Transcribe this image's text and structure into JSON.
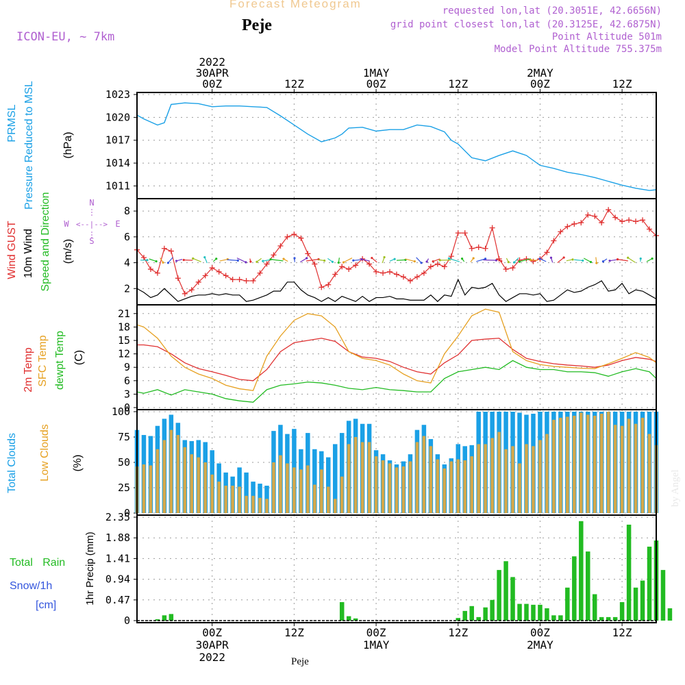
{
  "header": {
    "top_title": "Forecast Meteogram",
    "location": "Peje",
    "model": "ICON-EU, ~ 7km",
    "requested_point": "requested lon,lat (20.3051E, 42.6656N)",
    "grid_point": "grid point closest lon,lat (20.3125E, 42.6875N)",
    "point_altitude": "Point Altitude 501m",
    "model_altitude": "Model Point Altitude 755.375m",
    "footer_location": "Peje",
    "watermark": "by Angel"
  },
  "time_axis": {
    "top_labels": [
      {
        "lines": [
          "2022",
          "30APR",
          "00Z"
        ]
      },
      {
        "lines": [
          "12Z"
        ]
      },
      {
        "lines": [
          "1MAY",
          "00Z"
        ]
      },
      {
        "lines": [
          "12Z"
        ]
      },
      {
        "lines": [
          "2MAY",
          "00Z"
        ]
      },
      {
        "lines": [
          "12Z"
        ]
      }
    ],
    "bottom_labels": [
      {
        "lines": [
          "00Z",
          "30APR",
          "2022"
        ]
      },
      {
        "lines": [
          "12Z"
        ]
      },
      {
        "lines": [
          "00Z",
          "1MAY"
        ]
      },
      {
        "lines": [
          "12Z"
        ]
      },
      {
        "lines": [
          "00Z",
          "2MAY"
        ]
      },
      {
        "lines": [
          "12Z"
        ]
      }
    ],
    "hours_tick_positions": [
      0,
      12,
      24,
      36,
      48,
      60
    ],
    "x_start_hour": -11,
    "x_end_hour": 65
  },
  "panel_labels": {
    "pressure": [
      {
        "text": "PRMSL",
        "color": "#1aa0e6"
      },
      {
        "text": "Pressure Reduced to MSL",
        "color": "#1aa0e6"
      },
      {
        "text": "(hPa)",
        "color": "#000000"
      }
    ],
    "wind": [
      {
        "text": "Wind GUST",
        "color": "#e03030"
      },
      {
        "text": "10m Wind",
        "color": "#000000"
      },
      {
        "text": "Speed and Direction",
        "color": "#22bb22"
      },
      {
        "text": "(m/s)",
        "color": "#000000"
      }
    ],
    "wind_compass": {
      "n": "N",
      "s": "S",
      "w": "W",
      "e": "E",
      "center": "<--|-->"
    },
    "temp": [
      {
        "text": "2m Temp",
        "color": "#e03030"
      },
      {
        "text": "SFC Temp",
        "color": "#e6a020"
      },
      {
        "text": "dewpt Temp",
        "color": "#22bb22"
      },
      {
        "text": "(C)",
        "color": "#000000"
      }
    ],
    "clouds": [
      {
        "text": "Total Clouds",
        "color": "#1aa0e6"
      },
      {
        "text": "Low Clouds",
        "color": "#e6a020"
      },
      {
        "text": "(%)",
        "color": "#000000"
      }
    ],
    "precip_left": [
      {
        "text": "Total Rain",
        "color": "#22bb22"
      },
      {
        "text": "Snow/1h",
        "color": "#3355dd"
      },
      {
        "text": "[cm]",
        "color": "#3355dd"
      }
    ],
    "precip_axis": "1hr Precip (mm)"
  },
  "colors": {
    "pressure": "#1aa0e6",
    "gust": "#e03030",
    "wind": "#000000",
    "t2m": "#e03030",
    "tsfc": "#e6a020",
    "dewpt": "#22bb22",
    "total_clouds": "#1aa0e6",
    "low_clouds": "#d4a84a",
    "rain": "#22bb22",
    "title_fade": "#f0c890",
    "meta": "#b060d0"
  },
  "chart_data": [
    {
      "type": "line",
      "panel": "pressure",
      "ylabel": "(hPa)",
      "ylim": [
        1009.6,
        1023
      ],
      "yticks": [
        1011,
        1014,
        1017,
        1020,
        1023
      ],
      "x_hours": [
        -11,
        -10,
        -8,
        -7,
        -6,
        -4,
        -2,
        0,
        2,
        4,
        6,
        8,
        10,
        12,
        14,
        16,
        18,
        19,
        20,
        22,
        24,
        26,
        28,
        30,
        32,
        34,
        35,
        36,
        38,
        40,
        42,
        44,
        46,
        48,
        50,
        52,
        54,
        56,
        58,
        60,
        62,
        64,
        65
      ],
      "series": [
        {
          "name": "PRMSL",
          "values": [
            1020.3,
            1019.8,
            1019.0,
            1019.3,
            1021.7,
            1021.9,
            1021.8,
            1021.4,
            1021.5,
            1021.5,
            1021.4,
            1021.3,
            1020.2,
            1019.0,
            1017.8,
            1016.8,
            1017.3,
            1017.8,
            1018.6,
            1018.7,
            1018.2,
            1018.4,
            1018.4,
            1019.0,
            1018.8,
            1018.1,
            1017.0,
            1016.5,
            1014.7,
            1014.3,
            1015.0,
            1015.6,
            1015.0,
            1013.7,
            1013.3,
            1012.8,
            1012.5,
            1012.1,
            1011.6,
            1011.1,
            1010.7,
            1010.4,
            1010.5
          ]
        }
      ]
    },
    {
      "type": "line",
      "panel": "wind",
      "ylabel": "(m/s)",
      "ylim": [
        0.9,
        8.8
      ],
      "yticks": [
        2,
        4,
        6,
        8
      ],
      "x_hours": [
        -11,
        -10,
        -9,
        -8,
        -7,
        -6,
        -5,
        -4,
        -3,
        -2,
        -1,
        0,
        1,
        2,
        3,
        4,
        5,
        6,
        7,
        8,
        9,
        10,
        11,
        12,
        13,
        14,
        15,
        16,
        17,
        18,
        19,
        20,
        21,
        22,
        23,
        24,
        25,
        26,
        27,
        28,
        29,
        30,
        31,
        32,
        33,
        34,
        35,
        36,
        37,
        38,
        39,
        40,
        41,
        42,
        43,
        44,
        45,
        46,
        47,
        48,
        49,
        50,
        51,
        52,
        53,
        54,
        55,
        56,
        57,
        58,
        59,
        60,
        61,
        62,
        63,
        64,
        65
      ],
      "series": [
        {
          "name": "Wind GUST",
          "values": [
            5.0,
            4.4,
            3.5,
            3.2,
            5.1,
            4.9,
            2.8,
            1.6,
            1.9,
            2.5,
            3.0,
            3.6,
            3.3,
            3.0,
            2.7,
            2.7,
            2.6,
            2.6,
            3.2,
            3.9,
            4.6,
            5.3,
            6.0,
            6.2,
            5.9,
            4.7,
            3.9,
            2.1,
            2.3,
            3.1,
            3.7,
            3.5,
            3.8,
            4.3,
            3.9,
            3.3,
            3.2,
            3.3,
            3.1,
            2.9,
            2.6,
            2.9,
            3.2,
            3.7,
            3.9,
            3.7,
            4.5,
            6.3,
            6.3,
            5.1,
            5.2,
            5.1,
            6.7,
            4.3,
            3.5,
            3.6,
            4.2,
            4.3,
            4.1,
            4.3,
            4.8,
            5.7,
            6.4,
            6.8,
            7.0,
            7.1,
            7.7,
            7.6,
            7.1,
            8.1,
            7.5,
            7.2,
            7.3,
            7.2,
            7.3,
            6.6,
            6.1
          ]
        },
        {
          "name": "10m Wind",
          "values": [
            2.0,
            1.7,
            1.3,
            1.5,
            2.0,
            1.5,
            1.0,
            1.2,
            1.4,
            1.5,
            1.5,
            1.6,
            1.5,
            1.6,
            1.5,
            1.5,
            1.0,
            1.1,
            1.3,
            1.5,
            1.8,
            1.8,
            2.5,
            2.5,
            1.9,
            1.5,
            1.3,
            1.0,
            1.3,
            1.0,
            1.4,
            1.2,
            1.0,
            1.4,
            1.0,
            1.3,
            1.3,
            1.4,
            1.2,
            1.2,
            1.1,
            1.1,
            1.1,
            1.5,
            1.0,
            1.5,
            1.4,
            2.7,
            1.5,
            2.1,
            2.0,
            2.1,
            2.4,
            1.5,
            1.0,
            1.3,
            1.6,
            1.6,
            1.5,
            1.6,
            1.0,
            1.1,
            1.5,
            1.9,
            1.7,
            1.8,
            2.1,
            2.3,
            2.6,
            1.8,
            1.9,
            2.4,
            1.6,
            1.9,
            1.8,
            1.5,
            1.2
          ]
        }
      ],
      "wind_arrows": {
        "count": 58,
        "note": "direction arrows drawn along the 4.2 m/s line"
      }
    },
    {
      "type": "line",
      "panel": "temp",
      "ylabel": "(C)",
      "ylim": [
        0,
        22.5
      ],
      "yticks": [
        0,
        3,
        6,
        9,
        12,
        15,
        18,
        21
      ],
      "x_hours": [
        -11,
        -10,
        -8,
        -6,
        -4,
        -2,
        0,
        2,
        4,
        6,
        8,
        10,
        12,
        14,
        16,
        18,
        20,
        22,
        24,
        26,
        28,
        30,
        32,
        34,
        36,
        38,
        40,
        42,
        44,
        46,
        48,
        50,
        52,
        54,
        56,
        58,
        60,
        62,
        64,
        65
      ],
      "series": [
        {
          "name": "2m Temp",
          "values": [
            14.0,
            14.0,
            13.6,
            12.0,
            10.0,
            8.7,
            8.0,
            7.2,
            6.3,
            6.0,
            8.5,
            12.5,
            14.5,
            15.0,
            15.5,
            14.8,
            12.5,
            11.3,
            11.0,
            10.3,
            9.0,
            8.0,
            7.5,
            10.0,
            11.8,
            15.0,
            15.3,
            15.5,
            13.0,
            11.0,
            10.3,
            9.8,
            9.5,
            9.3,
            9.0,
            9.5,
            10.5,
            11.2,
            10.8,
            10.3
          ]
        },
        {
          "name": "SFC Temp",
          "values": [
            18.5,
            18.0,
            15.5,
            11.5,
            9.0,
            7.5,
            6.5,
            5.0,
            4.2,
            3.8,
            11.5,
            16.0,
            19.5,
            21.0,
            20.5,
            18.0,
            12.5,
            11.0,
            10.5,
            9.5,
            7.5,
            6.0,
            5.5,
            12.0,
            16.0,
            20.5,
            22.0,
            21.3,
            12.5,
            10.5,
            9.6,
            9.2,
            9.0,
            8.8,
            8.7,
            9.8,
            11.0,
            12.3,
            11.2,
            10.0
          ]
        },
        {
          "name": "dewpt Temp",
          "values": [
            3.5,
            3.2,
            4.0,
            2.8,
            4.0,
            3.5,
            3.0,
            2.0,
            1.5,
            1.2,
            4.0,
            5.0,
            5.3,
            5.7,
            5.5,
            5.0,
            4.3,
            4.0,
            4.5,
            4.0,
            3.8,
            3.5,
            3.5,
            6.5,
            8.0,
            8.5,
            9.0,
            8.5,
            10.5,
            9.0,
            8.5,
            8.5,
            8.0,
            8.0,
            7.8,
            7.0,
            8.0,
            8.7,
            8.0,
            6.5
          ]
        }
      ]
    },
    {
      "type": "bar",
      "panel": "clouds",
      "ylabel": "(%)",
      "ylim": [
        0,
        100
      ],
      "yticks": [
        0,
        25,
        50,
        75,
        100
      ],
      "x_hours_start": -11,
      "series": [
        {
          "name": "Total Clouds",
          "values": [
            82,
            77,
            76,
            86,
            93,
            97,
            89,
            72,
            71,
            72,
            70,
            62,
            49,
            40,
            36,
            45,
            40,
            31,
            29,
            27,
            81,
            87,
            78,
            83,
            63,
            79,
            63,
            61,
            55,
            68,
            79,
            91,
            93,
            88,
            88,
            62,
            58,
            52,
            48,
            51,
            58,
            82,
            87,
            73,
            58,
            48,
            54,
            68,
            66,
            67,
            100,
            100,
            100,
            100,
            100,
            100,
            99,
            97,
            98,
            100,
            100,
            100,
            100,
            100,
            100,
            100,
            100,
            100,
            100,
            100,
            100,
            100,
            100,
            100,
            100,
            100,
            100
          ]
        },
        {
          "name": "Low Clouds",
          "values": [
            46,
            48,
            47,
            63,
            72,
            82,
            77,
            65,
            58,
            55,
            50,
            38,
            31,
            27,
            27,
            26,
            17,
            17,
            15,
            14,
            50,
            57,
            49,
            45,
            43,
            47,
            28,
            43,
            26,
            14,
            36,
            68,
            75,
            70,
            70,
            56,
            52,
            49,
            45,
            46,
            51,
            70,
            76,
            66,
            53,
            44,
            51,
            53,
            52,
            56,
            68,
            68,
            74,
            80,
            63,
            66,
            49,
            68,
            66,
            72,
            78,
            92,
            94,
            95,
            96,
            99,
            97,
            96,
            98,
            100,
            87,
            86,
            93,
            88,
            94,
            78,
            67
          ]
        }
      ]
    },
    {
      "type": "bar",
      "panel": "precip",
      "ylabel": "1hr Precip (mm)",
      "ylim": [
        0,
        2.35
      ],
      "yticks": [
        0,
        0.47,
        0.94,
        1.41,
        1.88,
        2.35
      ],
      "x_hours_start": -11,
      "series": [
        {
          "name": "Total Rain",
          "values": [
            0,
            0,
            0,
            0.03,
            0.12,
            0.15,
            0,
            0,
            0,
            0,
            0,
            0,
            0,
            0,
            0,
            0,
            0,
            0,
            0,
            0,
            0,
            0,
            0,
            0,
            0,
            0,
            0,
            0,
            0,
            0,
            0.42,
            0.1,
            0.05,
            0,
            0,
            0,
            0,
            0,
            0,
            0,
            0,
            0,
            0,
            0,
            0,
            0,
            0,
            0.06,
            0.22,
            0.33,
            0.08,
            0.3,
            0.47,
            1.15,
            1.35,
            0.99,
            0.38,
            0.38,
            0.36,
            0.36,
            0.28,
            0.12,
            0.12,
            0.75,
            1.46,
            2.26,
            1.57,
            0.6,
            0.08,
            0.08,
            0.08,
            0.42,
            2.18,
            0.75,
            0.91,
            1.68,
            1.82,
            1.15,
            0.28
          ]
        }
      ]
    }
  ]
}
